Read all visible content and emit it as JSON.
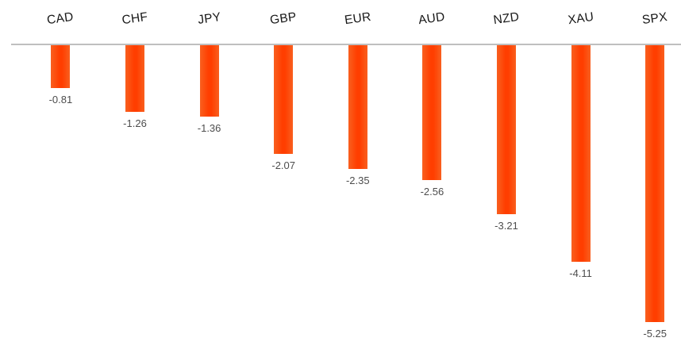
{
  "chart_data": {
    "type": "bar",
    "orientation": "vertical",
    "title": "",
    "xlabel": "",
    "ylabel": "",
    "grid": false,
    "legend": "none",
    "baseline": 0,
    "ylim": [
      -5.5,
      0
    ],
    "categories": [
      "CAD",
      "CHF",
      "JPY",
      "GBP",
      "EUR",
      "AUD",
      "NZD",
      "XAU",
      "SPX"
    ],
    "values": [
      -0.81,
      -1.26,
      -1.36,
      -2.07,
      -2.35,
      -2.56,
      -3.21,
      -4.11,
      -5.25
    ],
    "data_labels": [
      "-0.81",
      "-1.26",
      "-1.36",
      "-2.07",
      "-2.35",
      "-2.56",
      "-3.21",
      "-4.11",
      "-5.25"
    ],
    "colors": {
      "bar_edge": "#f9601f",
      "bar_center": "#ff3e00",
      "axis_line": "#bfbfbf",
      "category_label": "#171717",
      "value_label": "#4d4d4d",
      "background": "#ffffff"
    }
  }
}
